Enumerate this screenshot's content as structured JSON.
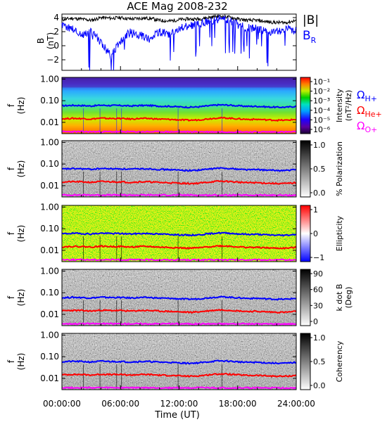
{
  "title": "ACE Mag 2008-232",
  "time_axis": {
    "ticks": [
      "00:00:00",
      "06:00:00",
      "12:00:00",
      "18:00:00",
      "24:00:00"
    ],
    "label": "Time (UT)"
  },
  "colors": {
    "b_total": "#000000",
    "b_r": "#0000ff",
    "omega_h": "#0000ff",
    "omega_he": "#ff0000",
    "omega_o": "#ff00ff"
  },
  "panel_b": {
    "ylabel_a": "B",
    "ylabel_b": "(nT)",
    "yticks": [
      "4",
      "2",
      "0",
      "−2"
    ],
    "legend_b": "|B|",
    "legend_br": "B",
    "legend_br_sub": "R"
  },
  "freq_axis": {
    "ylabel_a": "f",
    "ylabel_b": "(Hz)",
    "ticks": [
      "1.00",
      "0.10",
      "0.01"
    ]
  },
  "panels": [
    {
      "id": "intensity",
      "colorbar_title_a": "Intensity",
      "colorbar_title_b": "(nT²/Hz)",
      "colorbar_ticks": [
        "10⁻¹",
        "10⁻²",
        "10⁻³",
        "10⁻⁴",
        "10⁻⁵",
        "10⁻⁶"
      ],
      "legend": [
        {
          "sym": "Ω",
          "sub": "H+",
          "key": "omega_h"
        },
        {
          "sym": "Ω",
          "sub": "He+",
          "key": "omega_he"
        },
        {
          "sym": "Ω",
          "sub": "O+",
          "key": "omega_o"
        }
      ]
    },
    {
      "id": "polarization",
      "colorbar_title_a": "% Polarization",
      "colorbar_title_b": "",
      "colorbar_ticks": [
        "1.0",
        "0.5",
        "0.0"
      ]
    },
    {
      "id": "ellipticity",
      "colorbar_title_a": "Ellipticity",
      "colorbar_title_b": "",
      "colorbar_ticks": [
        "1",
        "0",
        "−1"
      ]
    },
    {
      "id": "kdotb",
      "colorbar_title_a": "k dot B",
      "colorbar_title_b": "(Deg)",
      "colorbar_ticks": [
        "90",
        "60",
        "30",
        "0"
      ]
    },
    {
      "id": "coherency",
      "colorbar_title_a": "Coherency",
      "colorbar_title_b": "",
      "colorbar_ticks": [
        "1.0",
        "0.5",
        "0.0"
      ]
    }
  ],
  "chart_data": {
    "type": "line",
    "x_unit": "hours UT",
    "xlim": [
      0,
      24
    ],
    "magnetic_field": {
      "ylim": [
        -3.5,
        4.5
      ],
      "series": [
        {
          "name": "|B|",
          "x": [
            0,
            1,
            2,
            3,
            4,
            5,
            6,
            7,
            8,
            9,
            10,
            11,
            12,
            13,
            14,
            15,
            16,
            17,
            18,
            19,
            20,
            21,
            22,
            23,
            24
          ],
          "y": [
            3.7,
            3.9,
            3.8,
            3.6,
            4.0,
            3.9,
            4.0,
            3.8,
            3.9,
            3.9,
            3.6,
            3.5,
            3.7,
            3.8,
            3.8,
            4.0,
            4.2,
            4.1,
            3.8,
            3.6,
            3.6,
            3.4,
            3.3,
            3.3,
            3.6
          ]
        },
        {
          "name": "B_R",
          "x": [
            0,
            1,
            2,
            3,
            4,
            5,
            6,
            7,
            8,
            9,
            10,
            11,
            12,
            13,
            14,
            15,
            16,
            17,
            18,
            19,
            20,
            21,
            22,
            23,
            24
          ],
          "y": [
            2.8,
            2.5,
            1.5,
            2.0,
            0.5,
            -1.5,
            0.5,
            2.0,
            1.5,
            1.0,
            2.0,
            1.5,
            2.5,
            2.8,
            3.0,
            3.5,
            3.8,
            3.6,
            3.0,
            2.5,
            2.5,
            2.0,
            2.0,
            2.5,
            2.0
          ]
        }
      ]
    },
    "gyrofrequencies_hz": [
      {
        "name": "ΩH+",
        "x": [
          0,
          1,
          2,
          3,
          4,
          5,
          6,
          7,
          8,
          9,
          10,
          11,
          12,
          13,
          14,
          15,
          16,
          17,
          18,
          19,
          20,
          21,
          22,
          23,
          24
        ],
        "y": [
          0.058,
          0.061,
          0.06,
          0.057,
          0.062,
          0.06,
          0.06,
          0.057,
          0.06,
          0.06,
          0.056,
          0.055,
          0.052,
          0.05,
          0.052,
          0.058,
          0.064,
          0.063,
          0.058,
          0.055,
          0.055,
          0.052,
          0.05,
          0.05,
          0.055
        ]
      },
      {
        "name": "ΩHe+",
        "x": [
          0,
          1,
          2,
          3,
          4,
          5,
          6,
          7,
          8,
          9,
          10,
          11,
          12,
          13,
          14,
          15,
          16,
          17,
          18,
          19,
          20,
          21,
          22,
          23,
          24
        ],
        "y": [
          0.0145,
          0.0152,
          0.015,
          0.0142,
          0.0155,
          0.015,
          0.015,
          0.0142,
          0.015,
          0.015,
          0.014,
          0.0137,
          0.013,
          0.0125,
          0.013,
          0.0145,
          0.016,
          0.0157,
          0.0145,
          0.0137,
          0.0137,
          0.013,
          0.0125,
          0.0125,
          0.0137
        ]
      },
      {
        "name": "ΩO+",
        "x": [
          0,
          24
        ],
        "y": [
          0.0037,
          0.0036
        ]
      }
    ],
    "spectrograms": [
      {
        "name": "Intensity",
        "unit": "nT^2/Hz",
        "scale": "log",
        "range": [
          1e-06,
          0.3
        ]
      },
      {
        "name": "% Polarization",
        "range": [
          0,
          1
        ]
      },
      {
        "name": "Ellipticity",
        "range": [
          -1,
          1
        ]
      },
      {
        "name": "k dot B",
        "unit": "Deg",
        "range": [
          0,
          90
        ]
      },
      {
        "name": "Coherency",
        "range": [
          0,
          1
        ]
      }
    ],
    "frequency_axis": {
      "scale": "log",
      "range_hz": [
        0.003,
        1.2
      ]
    }
  }
}
